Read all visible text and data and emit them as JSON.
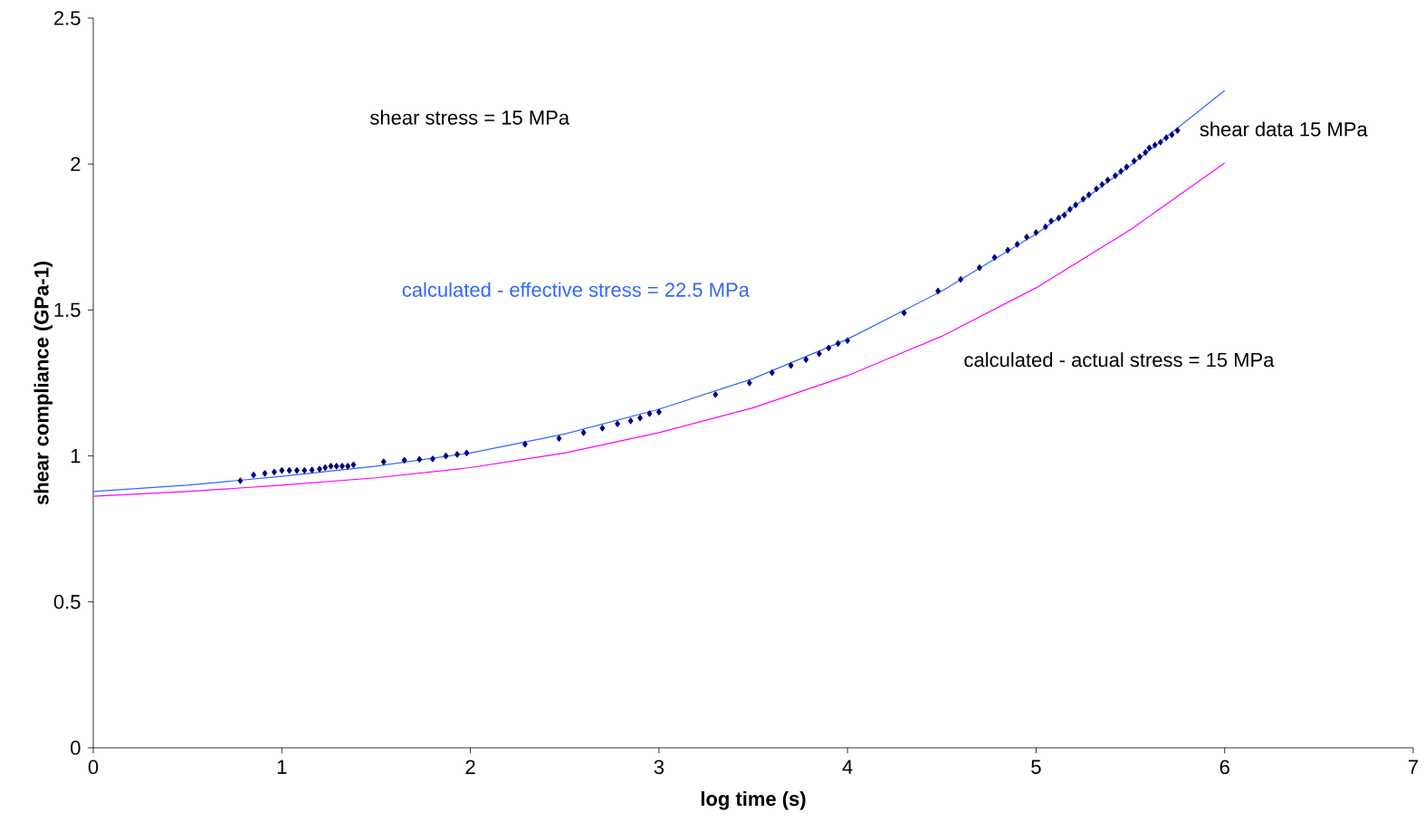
{
  "chart_data": {
    "type": "line",
    "xlabel": "log time (s)",
    "ylabel": "shear compliance (GPa-1)",
    "xlim": [
      0,
      7
    ],
    "ylim": [
      0,
      2.5
    ],
    "xticks": [
      0,
      1,
      2,
      3,
      4,
      5,
      6,
      7
    ],
    "yticks": [
      0,
      0.5,
      1,
      1.5,
      2,
      2.5
    ],
    "annotations": [
      "shear stress = 15 MPa"
    ],
    "series": [
      {
        "name": "shear data 15 MPa",
        "type": "scatter",
        "marker": "diamond",
        "color": "#000080",
        "x": [
          0.78,
          0.85,
          0.91,
          0.96,
          1.0,
          1.04,
          1.08,
          1.12,
          1.16,
          1.2,
          1.23,
          1.26,
          1.29,
          1.32,
          1.35,
          1.38,
          1.54,
          1.65,
          1.73,
          1.8,
          1.87,
          1.93,
          1.98,
          2.29,
          2.47,
          2.6,
          2.7,
          2.78,
          2.85,
          2.9,
          2.95,
          3.0,
          3.3,
          3.48,
          3.6,
          3.7,
          3.78,
          3.85,
          3.9,
          3.95,
          4.0,
          4.3,
          4.48,
          4.6,
          4.7,
          4.78,
          4.85,
          4.9,
          4.95,
          5.0,
          5.05,
          5.08,
          5.12,
          5.15,
          5.18,
          5.21,
          5.25,
          5.28,
          5.32,
          5.35,
          5.38,
          5.42,
          5.45,
          5.48,
          5.52,
          5.55,
          5.58,
          5.6,
          5.63,
          5.66,
          5.69,
          5.72,
          5.75
        ],
        "values": [
          0.915,
          0.935,
          0.94,
          0.945,
          0.95,
          0.95,
          0.95,
          0.95,
          0.952,
          0.955,
          0.96,
          0.965,
          0.965,
          0.965,
          0.965,
          0.97,
          0.98,
          0.985,
          0.988,
          0.99,
          1.0,
          1.005,
          1.01,
          1.04,
          1.06,
          1.08,
          1.095,
          1.11,
          1.12,
          1.13,
          1.145,
          1.15,
          1.21,
          1.25,
          1.285,
          1.31,
          1.33,
          1.35,
          1.37,
          1.385,
          1.395,
          1.49,
          1.565,
          1.605,
          1.645,
          1.68,
          1.705,
          1.725,
          1.75,
          1.765,
          1.785,
          1.805,
          1.815,
          1.825,
          1.845,
          1.86,
          1.88,
          1.895,
          1.915,
          1.93,
          1.945,
          1.96,
          1.975,
          1.99,
          2.01,
          2.025,
          2.04,
          2.055,
          2.065,
          2.075,
          2.09,
          2.1,
          2.115
        ]
      },
      {
        "name": "calculated - effective stress = 22.5 MPa",
        "marker": "none",
        "color": "#3366ff",
        "x": [
          0,
          0.5,
          1,
          1.5,
          2,
          2.5,
          3,
          3.5,
          4,
          4.5,
          5,
          5.5,
          6
        ],
        "values": [
          0.878,
          0.9,
          0.93,
          0.965,
          1.01,
          1.075,
          1.16,
          1.265,
          1.4,
          1.565,
          1.76,
          1.995,
          2.252
        ]
      },
      {
        "name": "calculated - actual stress = 15 MPa",
        "marker": "none",
        "color": "#ff00ff",
        "x": [
          0,
          0.5,
          1,
          1.5,
          2,
          2.5,
          3,
          3.5,
          4,
          4.5,
          5,
          5.5,
          6
        ],
        "values": [
          0.862,
          0.878,
          0.9,
          0.925,
          0.96,
          1.01,
          1.08,
          1.165,
          1.275,
          1.41,
          1.576,
          1.775,
          2.004
        ]
      }
    ]
  }
}
